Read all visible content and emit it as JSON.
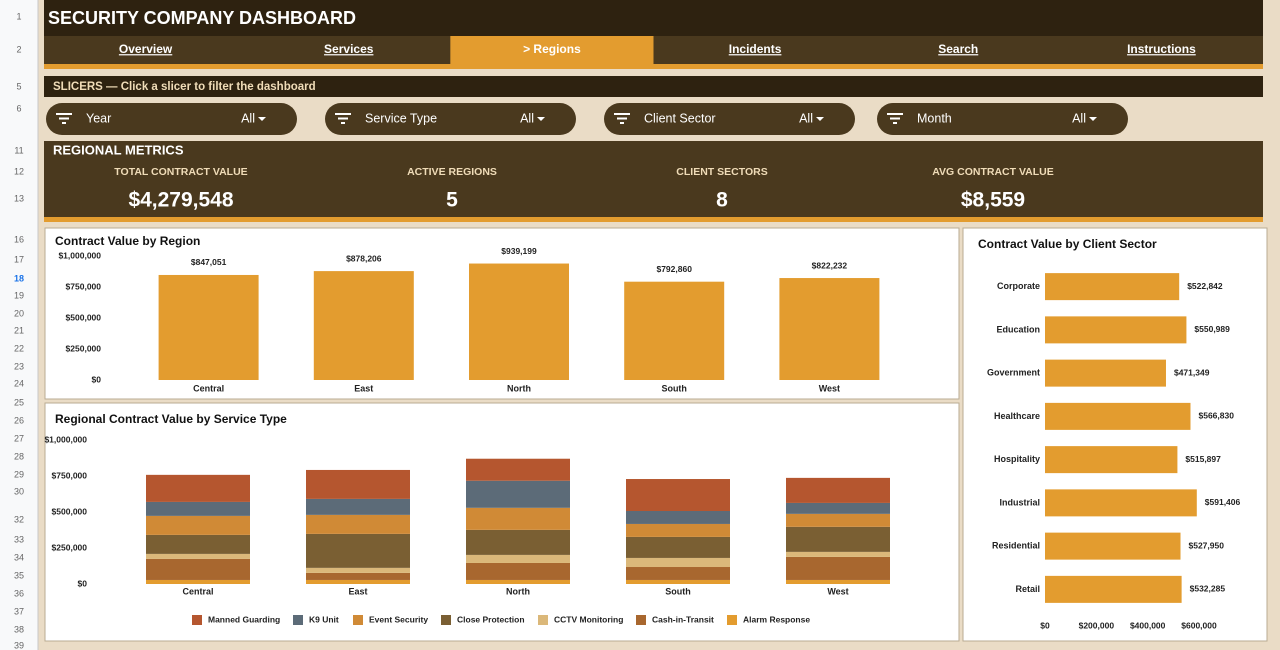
{
  "sheet": {
    "row_numbers": [
      "1",
      "2",
      "5",
      "6",
      "11",
      "12",
      "13",
      "16",
      "17",
      "18",
      "19",
      "20",
      "21",
      "22",
      "23",
      "24",
      "25",
      "26",
      "27",
      "28",
      "29",
      "30",
      "32",
      "33",
      "34",
      "35",
      "36",
      "37",
      "38",
      "39"
    ]
  },
  "header": {
    "title": "SECURITY COMPANY DASHBOARD",
    "tabs": [
      "Overview",
      "Services",
      "> Regions",
      "Incidents",
      "Search",
      "Instructions"
    ],
    "active_tab": 2
  },
  "slicers": {
    "header": "SLICERS — Click a slicer to filter the dashboard",
    "items": [
      {
        "label": "Year",
        "value": "All"
      },
      {
        "label": "Service Type",
        "value": "All"
      },
      {
        "label": "Client Sector",
        "value": "All"
      },
      {
        "label": "Month",
        "value": "All"
      }
    ]
  },
  "metrics": {
    "title": "REGIONAL METRICS",
    "items": [
      {
        "label": "TOTAL CONTRACT VALUE",
        "value": "$4,279,548"
      },
      {
        "label": "ACTIVE REGIONS",
        "value": "5"
      },
      {
        "label": "CLIENT SECTORS",
        "value": "8"
      },
      {
        "label": "AVG CONTRACT VALUE",
        "value": "$8,559"
      }
    ]
  },
  "chart_data": [
    {
      "type": "bar",
      "title": "Contract Value by Region",
      "categories": [
        "Central",
        "East",
        "North",
        "South",
        "West"
      ],
      "values": [
        847051,
        878206,
        939199,
        792860,
        822232
      ],
      "value_labels": [
        "$847,051",
        "$878,206",
        "$939,199",
        "$792,860",
        "$822,232"
      ],
      "color": "#e39c2f",
      "ylim": [
        0,
        1000000
      ],
      "yticks": [
        {
          "value": 0,
          "label": "$0"
        },
        {
          "value": 250000,
          "label": "$250,000"
        },
        {
          "value": 500000,
          "label": "$500,000"
        },
        {
          "value": 750000,
          "label": "$750,000"
        },
        {
          "value": 1000000,
          "label": "$1,000,000"
        }
      ]
    },
    {
      "type": "stacked_bar",
      "title": "Regional Contract Value by Service Type",
      "categories": [
        "Central",
        "East",
        "North",
        "South",
        "West"
      ],
      "series": [
        {
          "name": "Manned Guarding",
          "color": "#b5562f",
          "values": [
            188000,
            201000,
            153000,
            222000,
            174000
          ]
        },
        {
          "name": "K9 Unit",
          "color": "#5c6b78",
          "values": [
            97000,
            111000,
            188000,
            90000,
            76000
          ]
        },
        {
          "name": "Event Security",
          "color": "#d08a36",
          "values": [
            132000,
            132000,
            153000,
            90000,
            90000
          ]
        },
        {
          "name": "Close Protection",
          "color": "#7a5f33",
          "values": [
            132000,
            236000,
            174000,
            146000,
            174000
          ]
        },
        {
          "name": "CCTV Monitoring",
          "color": "#dbb87a",
          "values": [
            35000,
            35000,
            56000,
            63000,
            35000
          ]
        },
        {
          "name": "Cash-in-Transit",
          "color": "#a8672f",
          "values": [
            146000,
            49000,
            118000,
            90000,
            160000
          ]
        },
        {
          "name": "Alarm Response",
          "color": "#e39c2f",
          "values": [
            28000,
            28000,
            28000,
            28000,
            28000
          ]
        }
      ],
      "ylim": [
        0,
        1000000
      ],
      "yticks": [
        {
          "value": 0,
          "label": "$0"
        },
        {
          "value": 250000,
          "label": "$250,000"
        },
        {
          "value": 500000,
          "label": "$500,000"
        },
        {
          "value": 750000,
          "label": "$750,000"
        },
        {
          "value": 1000000,
          "label": "$1,000,000"
        }
      ],
      "legend": "bottom"
    },
    {
      "type": "barh",
      "title": "Contract Value by Client Sector",
      "categories": [
        "Corporate",
        "Education",
        "Government",
        "Healthcare",
        "Hospitality",
        "Industrial",
        "Residential",
        "Retail"
      ],
      "values": [
        522842,
        550989,
        471349,
        566830,
        515897,
        591406,
        527950,
        532285
      ],
      "value_labels": [
        "$522,842",
        "$550,989",
        "$471,349",
        "$566,830",
        "$515,897",
        "$591,406",
        "$527,950",
        "$532,285"
      ],
      "color": "#e39c2f",
      "xlim": [
        0,
        600000
      ],
      "xticks": [
        {
          "value": 0,
          "label": "$0"
        },
        {
          "value": 200000,
          "label": "$200,000"
        },
        {
          "value": 400000,
          "label": "$400,000"
        },
        {
          "value": 600000,
          "label": "$600,000"
        }
      ]
    }
  ]
}
